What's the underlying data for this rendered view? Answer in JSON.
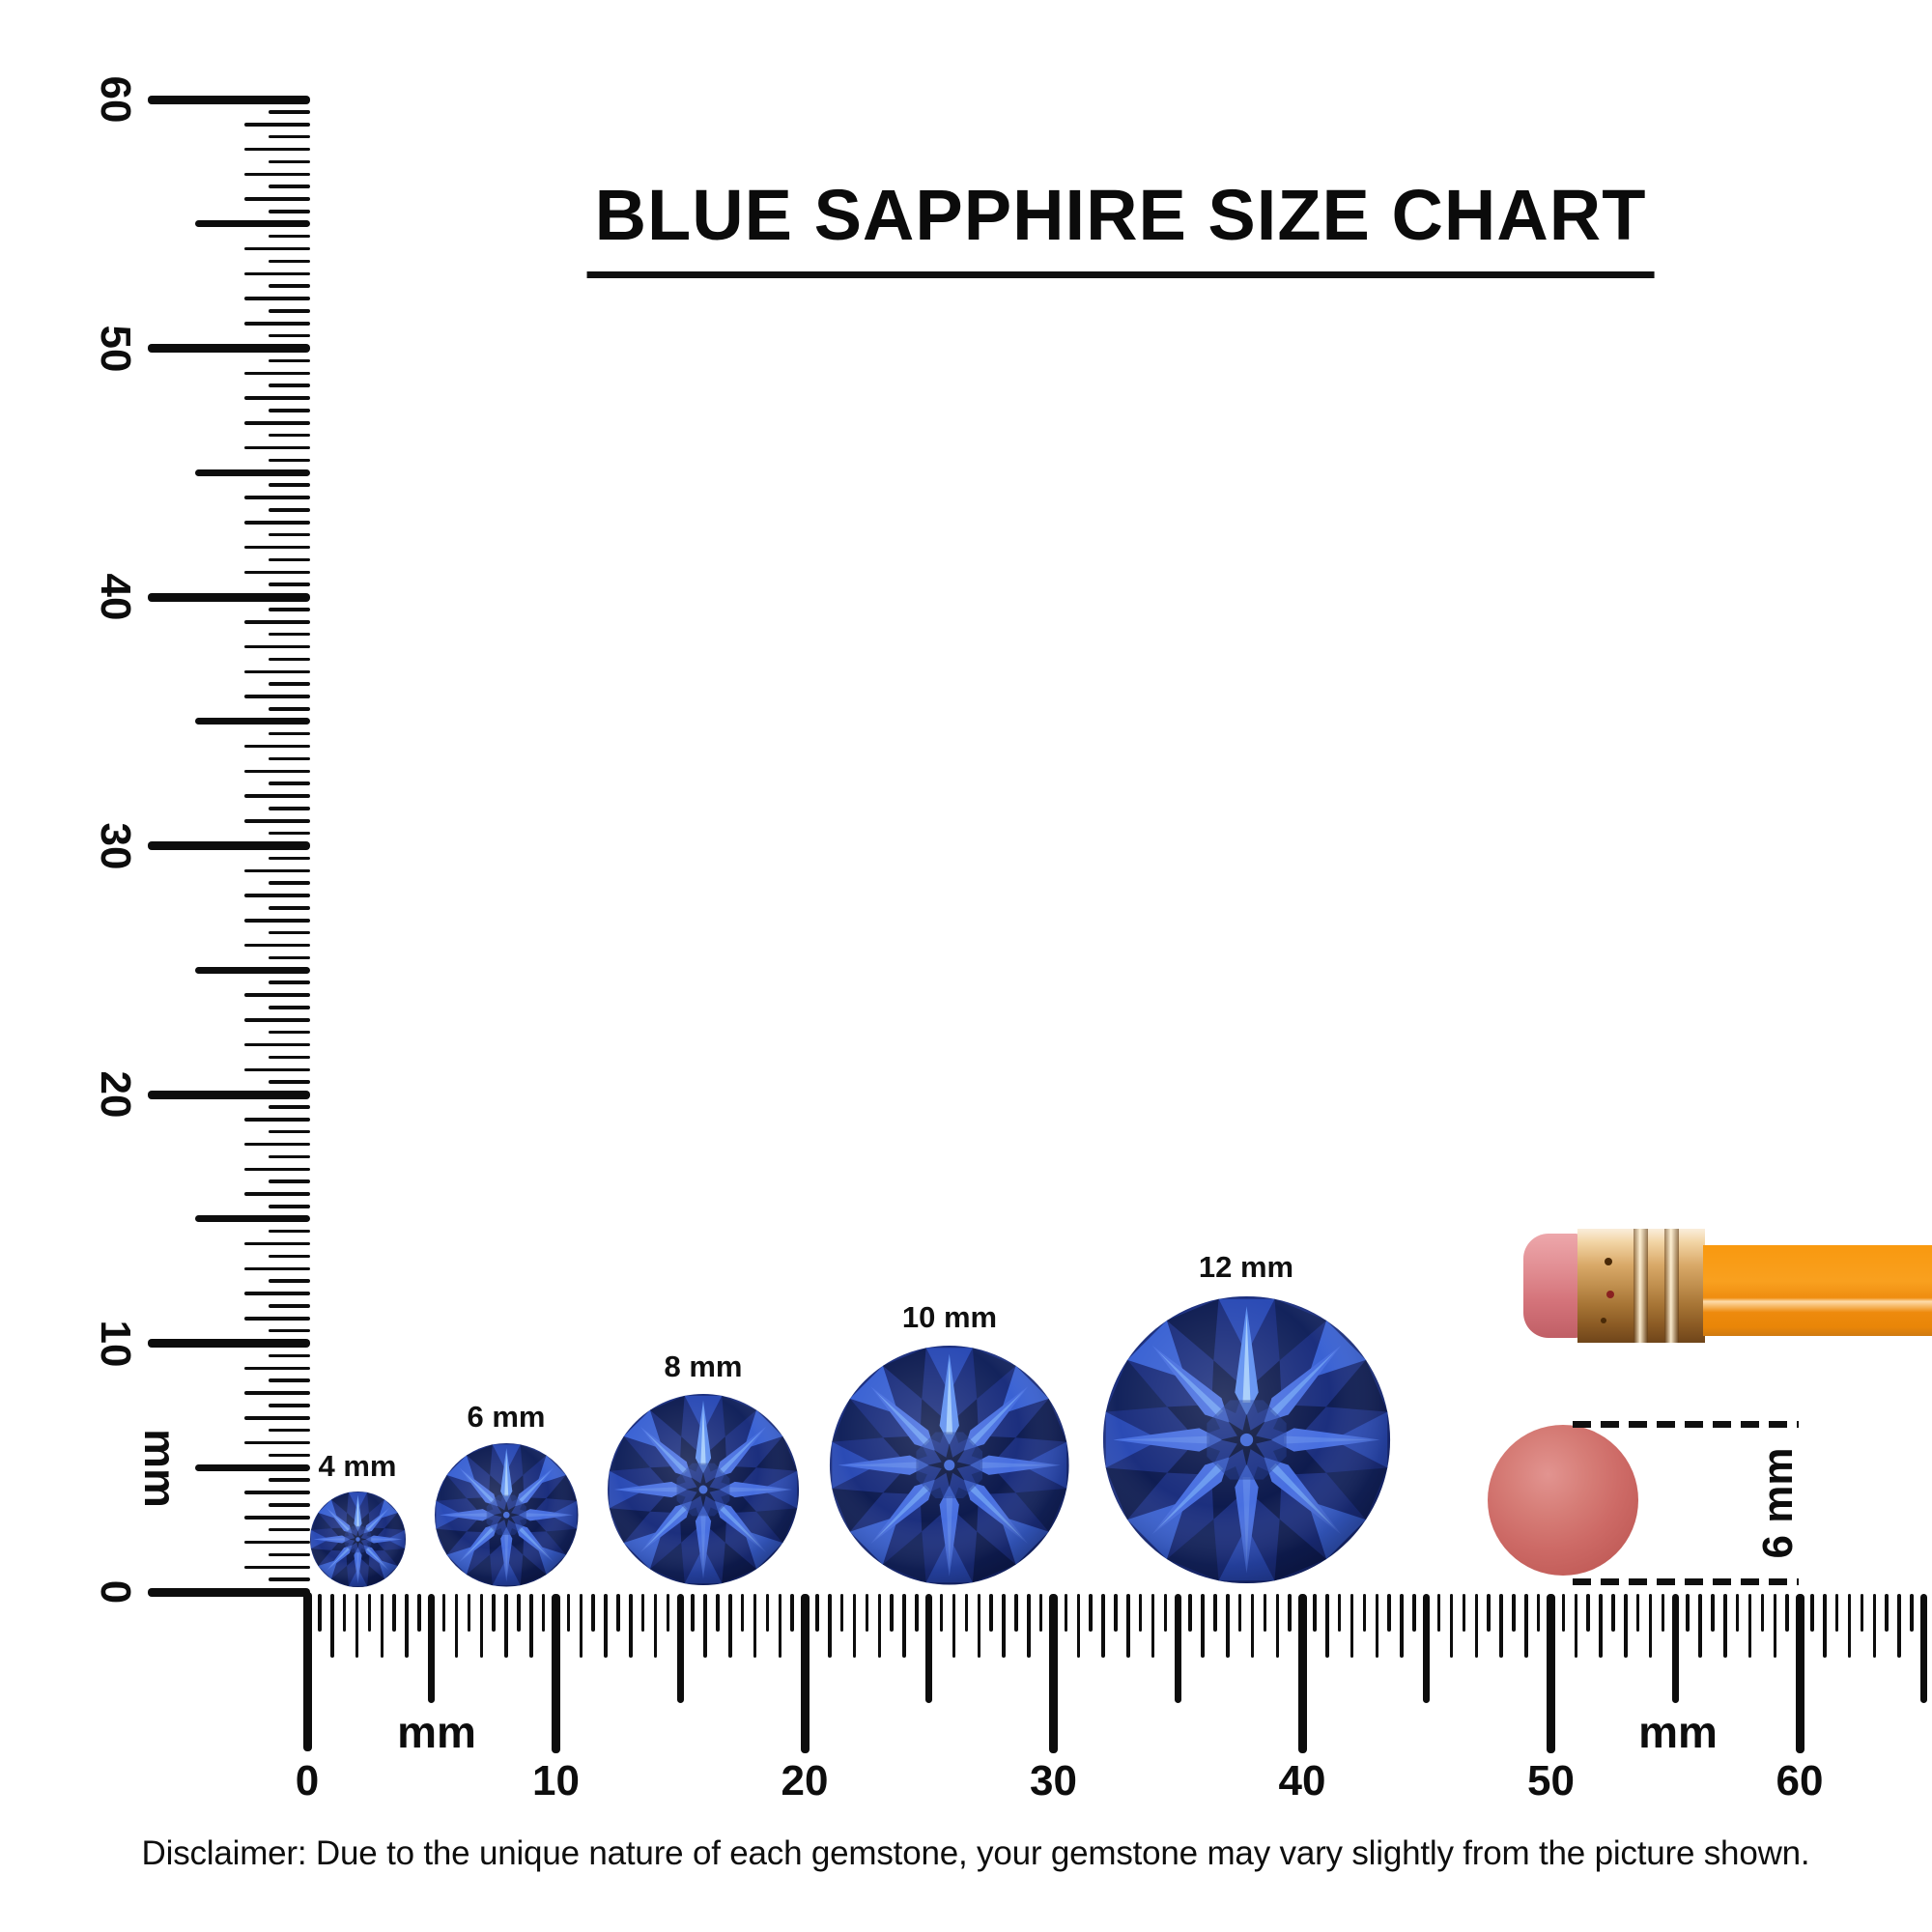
{
  "title": "BLUE SAPPHIRE SIZE CHART",
  "rulers": {
    "vertical": {
      "numbers": [
        "0",
        "10",
        "20",
        "30",
        "40",
        "50",
        "60"
      ],
      "unit": "mm",
      "range_mm": [
        0,
        60
      ]
    },
    "horizontal": {
      "numbers": [
        "0",
        "10",
        "20",
        "30",
        "40",
        "50",
        "60"
      ],
      "unit_left": "mm",
      "unit_right": "mm",
      "range_mm": [
        0,
        60
      ]
    }
  },
  "gems": [
    {
      "label": "4 mm",
      "size_mm": 4
    },
    {
      "label": "6 mm",
      "size_mm": 6
    },
    {
      "label": "8 mm",
      "size_mm": 8
    },
    {
      "label": "10 mm",
      "size_mm": 10
    },
    {
      "label": "12 mm",
      "size_mm": 12
    }
  ],
  "eraser_comparison": {
    "label": "6 mm",
    "size_mm": 6
  },
  "objects": {
    "pencil": "pencil-eraser-end",
    "eraser_dot": "round-pink-eraser"
  },
  "disclaimer": "Disclaimer: Due to the unique nature of each gemstone, your gemstone may vary slightly from the picture shown.",
  "colors": {
    "ink": "#0d0d0d",
    "pencil_orange": "#f8981c",
    "ferrule_gold": "#d9a968",
    "eraser_pink": "#cd6a66",
    "gem_base": "#1c2f7e",
    "gem_mid": "#2b4bb5",
    "gem_dark": "#13235c",
    "gem_ray": "#486fe0",
    "gem_highlight": "#a9d0fc"
  }
}
